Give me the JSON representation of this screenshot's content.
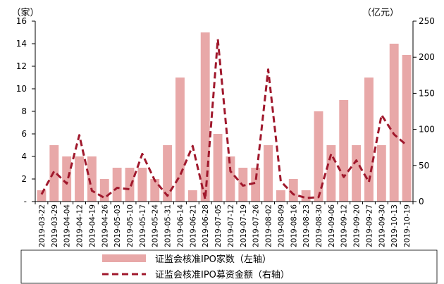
{
  "chart_data": {
    "type": "bar",
    "categories": [
      "2019-03-22",
      "2019-03-29",
      "2019-04-04",
      "2019-04-12",
      "2019-04-19",
      "2019-04-26",
      "2019-05-03",
      "2019-05-10",
      "2019-05-17",
      "2019-05-24",
      "2019-05-31",
      "2019-06-14",
      "2019-06-21",
      "2019-06-28",
      "2019-07-05",
      "2019-07-12",
      "2019-07-19",
      "2019-07-26",
      "2019-08-02",
      "2019-08-09",
      "2019-08-16",
      "2019-08-23",
      "2019-08-30",
      "2019-09-06",
      "2019-09-12",
      "2019-09-20",
      "2019-09-27",
      "2019-09-30",
      "2019-10-13",
      "2019-10-19"
    ],
    "y_left_label": "（家）",
    "y_right_label": "（亿元）",
    "y_left_ticks": [
      "16",
      "14",
      "12",
      "10",
      "8",
      "6",
      "4",
      "2",
      "-"
    ],
    "y_right_ticks": [
      "250",
      "200",
      "150",
      "100",
      "50",
      "0"
    ],
    "ylim_left": [
      0,
      16
    ],
    "ylim_right": [
      0,
      250
    ],
    "grid": false,
    "legend_position": "bottom",
    "series": [
      {
        "name": "证监会核准IPO家数（左轴）",
        "type": "bar",
        "axis": "left",
        "color": "#e8a8a8",
        "values": [
          1,
          5,
          4,
          4,
          4,
          2,
          3,
          3,
          3,
          2,
          5,
          11,
          1,
          15,
          6,
          4,
          3,
          3,
          5,
          1,
          2,
          1,
          8,
          5,
          9,
          5,
          11,
          5,
          14,
          13
        ]
      },
      {
        "name": "证监会核准IPO募资金额（右轴）",
        "type": "line",
        "axis": "right",
        "style": "dashed",
        "color": "#a0182c",
        "values": [
          10,
          42,
          25,
          92,
          15,
          5,
          19,
          17,
          66,
          29,
          8,
          36,
          77,
          3,
          225,
          42,
          22,
          26,
          183,
          28,
          10,
          5,
          6,
          66,
          34,
          57,
          27,
          120,
          93,
          78
        ]
      }
    ]
  }
}
